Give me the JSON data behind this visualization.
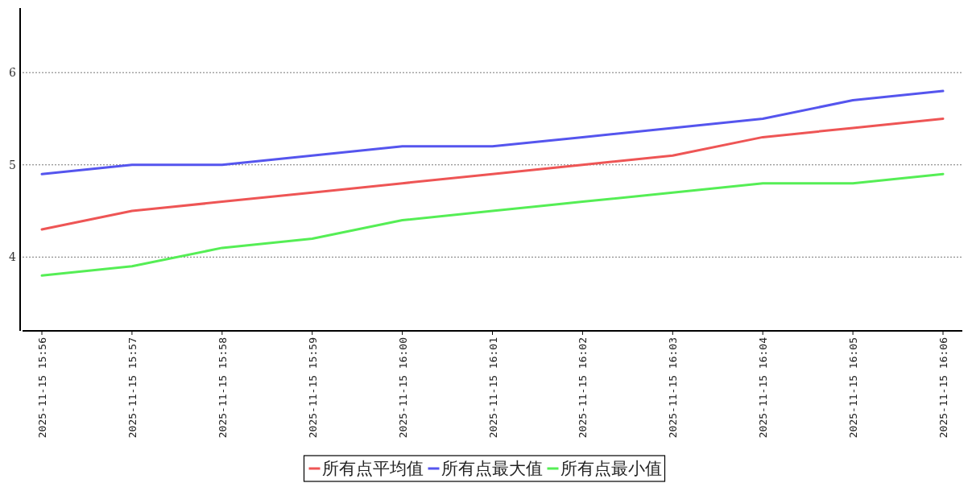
{
  "chart_data": {
    "type": "line",
    "categories": [
      "2025-11-15 15:56",
      "2025-11-15 15:57",
      "2025-11-15 15:58",
      "2025-11-15 15:59",
      "2025-11-15 16:00",
      "2025-11-15 16:01",
      "2025-11-15 16:02",
      "2025-11-15 16:03",
      "2025-11-15 16:04",
      "2025-11-15 16:05",
      "2025-11-15 16:06"
    ],
    "series": [
      {
        "name": "所有点平均值",
        "color": "#ee5555",
        "values": [
          4.3,
          4.5,
          4.6,
          4.7,
          4.8,
          4.9,
          5.0,
          5.1,
          5.3,
          5.4,
          5.5
        ]
      },
      {
        "name": "所有点最大值",
        "color": "#5555ee",
        "values": [
          4.9,
          5.0,
          5.0,
          5.1,
          5.2,
          5.2,
          5.3,
          5.4,
          5.5,
          5.7,
          5.8
        ]
      },
      {
        "name": "所有点最小值",
        "color": "#55ee55",
        "values": [
          3.8,
          3.9,
          4.1,
          4.2,
          4.4,
          4.5,
          4.6,
          4.7,
          4.8,
          4.8,
          4.9
        ]
      }
    ],
    "ylim": [
      3.2,
      6.7
    ],
    "yticks": [
      4,
      5,
      6
    ],
    "grid": "y",
    "legend": "bottom",
    "marker": "none",
    "line_style": "solid"
  }
}
